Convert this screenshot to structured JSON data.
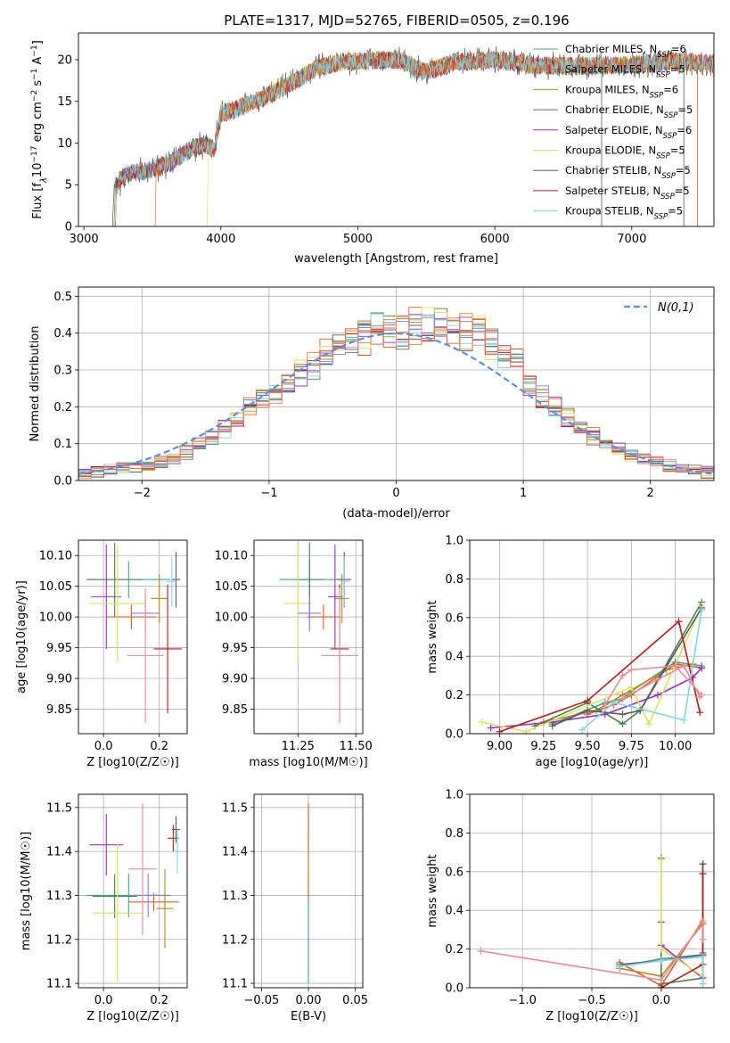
{
  "figure": {
    "title": "PLATE=1317, MJD=52765, FIBERID=0505, z=0.196"
  },
  "colors": {
    "series": [
      "#3fa0a6",
      "#e25a2d",
      "#b68a1a",
      "#4f7f4f",
      "#9b30c2",
      "#dce25c",
      "#5a5a5a",
      "#b01e1e",
      "#7fd6e8"
    ],
    "normal": "#5b8fd9",
    "grid": "#b0b0b0",
    "extra_hist": [
      "#8080e0",
      "#e88aa0",
      "#f07a3a"
    ]
  },
  "chart_data": [
    {
      "id": "spectrum",
      "type": "line",
      "title": "PLATE=1317, MJD=52765, FIBERID=0505, z=0.196",
      "xlabel": "wavelength [Angstrom, rest frame]",
      "ylabel": "Flux [f_λ 10^-17 erg cm^-2 s^-1 A^-1]",
      "xlim": [
        2960,
        7600
      ],
      "ylim": [
        0,
        23.2
      ],
      "xticks": [
        3000,
        4000,
        5000,
        6000,
        7000
      ],
      "yticks": [
        0,
        5,
        10,
        15,
        20
      ],
      "grid": false,
      "legend_position": "top-right",
      "legend": [
        {
          "base": "Chabrier MILES, N",
          "sub": "SSP",
          "tail": "=6"
        },
        {
          "base": "Salpeter MILES, N",
          "sub": "SSP",
          "tail": "=5"
        },
        {
          "base": "Kroupa MILES, N",
          "sub": "SSP",
          "tail": "=6"
        },
        {
          "base": "Chabrier ELODIE, N",
          "sub": "SSP",
          "tail": "=5"
        },
        {
          "base": "Salpeter ELODIE, N",
          "sub": "SSP",
          "tail": "=6"
        },
        {
          "base": "Kroupa ELODIE, N",
          "sub": "SSP",
          "tail": "=5"
        },
        {
          "base": "Chabrier STELIB, N",
          "sub": "SSP",
          "tail": "=5"
        },
        {
          "base": "Salpeter STELIB, N",
          "sub": "SSP",
          "tail": "=5"
        },
        {
          "base": "Kroupa STELIB, N",
          "sub": "SSP",
          "tail": "=5"
        }
      ],
      "continuum": [
        [
          3210,
          4.3
        ],
        [
          3300,
          6.3
        ],
        [
          3500,
          6.8
        ],
        [
          3650,
          7.8
        ],
        [
          3800,
          9.5
        ],
        [
          3900,
          9.7
        ],
        [
          3950,
          9.2
        ],
        [
          4000,
          13.5
        ],
        [
          4100,
          14.0
        ],
        [
          4300,
          15.3
        ],
        [
          4500,
          17.0
        ],
        [
          4700,
          19.0
        ],
        [
          4900,
          19.8
        ],
        [
          5100,
          19.9
        ],
        [
          5300,
          20.0
        ],
        [
          5500,
          18.5
        ],
        [
          5700,
          19.7
        ],
        [
          6000,
          20.0
        ],
        [
          6300,
          19.3
        ],
        [
          6600,
          19.2
        ],
        [
          7000,
          19.4
        ],
        [
          7300,
          19.8
        ],
        [
          7600,
          19.5
        ]
      ],
      "series_start": [
        3220,
        3520,
        3220,
        3230,
        3230,
        3900,
        3210,
        3230,
        3230
      ]
    },
    {
      "id": "residuals",
      "type": "histogram",
      "xlabel": "(data-model)/error",
      "ylabel": "Normed distribution",
      "xlim": [
        -2.5,
        2.5
      ],
      "ylim": [
        0,
        0.525
      ],
      "xticks": [
        -2,
        -1,
        0,
        1,
        2
      ],
      "yticks": [
        0.0,
        0.1,
        0.2,
        0.3,
        0.4,
        0.5
      ],
      "grid": true,
      "bin_width": 0.1,
      "legend_position": "top-right",
      "legend": {
        "label": "N(0,1)",
        "style": "dashed"
      },
      "mean_profile": [
        0.017,
        0.023,
        0.028,
        0.035,
        0.04,
        0.042,
        0.05,
        0.06,
        0.075,
        0.095,
        0.115,
        0.14,
        0.165,
        0.195,
        0.22,
        0.235,
        0.26,
        0.29,
        0.32,
        0.345,
        0.37,
        0.385,
        0.395,
        0.405,
        0.41,
        0.405,
        0.415,
        0.42,
        0.43,
        0.415,
        0.405,
        0.4,
        0.375,
        0.35,
        0.315,
        0.27,
        0.23,
        0.2,
        0.17,
        0.14,
        0.12,
        0.1,
        0.085,
        0.07,
        0.06,
        0.05,
        0.04,
        0.035,
        0.028,
        0.022
      ]
    },
    {
      "id": "age-vs-Z",
      "type": "scatter",
      "xlabel": "Z [log10(Z/Z☉)]",
      "ylabel": "age [log10(age/yr)]",
      "xlim": [
        -0.09,
        0.3
      ],
      "ylim": [
        9.81,
        10.125
      ],
      "xticks": [
        0.0,
        0.2
      ],
      "yticks": [
        9.85,
        9.9,
        9.95,
        10.0,
        10.05,
        10.1
      ],
      "grid": true,
      "points": [
        {
          "x": 0.09,
          "y": 10.061,
          "xerr": 0.15,
          "yerr": 0.03
        },
        {
          "x": 0.1,
          "y": 10.0,
          "xerr": 0.09,
          "yerr": 0.02
        },
        {
          "x": 0.2,
          "y": 10.03,
          "xerr": 0.03,
          "yerr": 0.04
        },
        {
          "x": 0.04,
          "y": 10.061,
          "xerr": 0.1,
          "yerr": 0.06
        },
        {
          "x": 0.01,
          "y": 10.033,
          "xerr": 0.055,
          "yerr": 0.085
        },
        {
          "x": 0.05,
          "y": 10.022,
          "xerr": 0.1,
          "yerr": 0.095
        },
        {
          "x": 0.26,
          "y": 10.061,
          "xerr": 0.015,
          "yerr": 0.045
        },
        {
          "x": 0.23,
          "y": 9.948,
          "xerr": 0.05,
          "yerr": 0.105
        },
        {
          "x": 0.245,
          "y": 10.058,
          "xerr": 0.02,
          "yerr": 0.04
        },
        {
          "x": 0.15,
          "y": 10.006,
          "xerr": 0.05,
          "yerr": 0.03
        },
        {
          "x": 0.15,
          "y": 9.937,
          "xerr": 0.065,
          "yerr": 0.11
        }
      ]
    },
    {
      "id": "age-vs-mass",
      "type": "scatter",
      "xlabel": "mass [log10(M/M☉)]",
      "ylabel": "",
      "xlim": [
        11.06,
        11.53
      ],
      "ylim": [
        9.81,
        10.125
      ],
      "xticks": [
        11.25,
        11.5
      ],
      "yticks": [
        9.85,
        9.9,
        9.95,
        10.0,
        10.05,
        10.1
      ],
      "grid": true,
      "points": [
        {
          "x": 11.3,
          "y": 10.061,
          "xerr": 0.13,
          "yerr": 0.03
        },
        {
          "x": 11.36,
          "y": 10.0,
          "xerr": 0.07,
          "yerr": 0.02
        },
        {
          "x": 11.44,
          "y": 10.03,
          "xerr": 0.03,
          "yerr": 0.04
        },
        {
          "x": 11.3,
          "y": 10.061,
          "xerr": 0.06,
          "yerr": 0.06
        },
        {
          "x": 11.41,
          "y": 10.033,
          "xerr": 0.03,
          "yerr": 0.085
        },
        {
          "x": 11.25,
          "y": 10.022,
          "xerr": 0.06,
          "yerr": 0.095
        },
        {
          "x": 11.45,
          "y": 10.061,
          "xerr": 0.03,
          "yerr": 0.045
        },
        {
          "x": 11.43,
          "y": 9.948,
          "xerr": 0.04,
          "yerr": 0.105
        },
        {
          "x": 11.45,
          "y": 10.058,
          "xerr": 0.02,
          "yerr": 0.04
        },
        {
          "x": 11.3,
          "y": 10.006,
          "xerr": 0.05,
          "yerr": 0.03
        },
        {
          "x": 11.43,
          "y": 9.937,
          "xerr": 0.08,
          "yerr": 0.11
        }
      ]
    },
    {
      "id": "weight-vs-age",
      "type": "line",
      "xlabel": "age [log10(age/yr)]",
      "ylabel": "mass weight",
      "xlim": [
        8.83,
        10.22
      ],
      "ylim": [
        0.0,
        1.0
      ],
      "xticks": [
        9.0,
        9.25,
        9.5,
        9.75,
        10.0
      ],
      "yticks": [
        0.0,
        0.2,
        0.4,
        0.6,
        0.8,
        1.0
      ],
      "grid": true,
      "series": [
        {
          "x": [
            9.3,
            9.6,
            9.7,
            9.75,
            10.0,
            10.15
          ],
          "y": [
            0.05,
            0.16,
            0.18,
            0.22,
            0.37,
            0.35
          ]
        },
        {
          "x": [
            9.5,
            9.65,
            9.75,
            10.0,
            10.15
          ],
          "y": [
            0.1,
            0.15,
            0.2,
            0.36,
            0.34
          ]
        },
        {
          "x": [
            9.25,
            9.55,
            9.7,
            9.95,
            10.1
          ],
          "y": [
            0.06,
            0.12,
            0.2,
            0.33,
            0.36
          ]
        },
        {
          "x": [
            9.2,
            9.5,
            9.7,
            9.8,
            10.15
          ],
          "y": [
            0.04,
            0.16,
            0.05,
            0.12,
            0.68
          ]
        },
        {
          "x": [
            8.95,
            9.3,
            9.6,
            9.9,
            10.1,
            10.15
          ],
          "y": [
            0.03,
            0.06,
            0.1,
            0.2,
            0.29,
            0.34
          ]
        },
        {
          "x": [
            8.9,
            9.15,
            9.75,
            9.85,
            10.15
          ],
          "y": [
            0.06,
            0.01,
            0.24,
            0.05,
            0.66
          ]
        },
        {
          "x": [
            9.3,
            9.5,
            9.7,
            9.8,
            10.15
          ],
          "y": [
            0.04,
            0.12,
            0.1,
            0.12,
            0.65
          ]
        },
        {
          "x": [
            9.0,
            9.5,
            10.02,
            10.14
          ],
          "y": [
            0.01,
            0.17,
            0.58,
            0.11
          ]
        },
        {
          "x": [
            9.47,
            9.65,
            9.75,
            10.05,
            10.15
          ],
          "y": [
            0.02,
            0.16,
            0.14,
            0.07,
            0.64
          ]
        },
        {
          "x": [
            9.6,
            9.7,
            9.75,
            10.0,
            10.15
          ],
          "y": [
            0.15,
            0.3,
            0.33,
            0.35,
            0.2
          ]
        },
        {
          "x": [
            9.7,
            9.9,
            10.05,
            10.14
          ],
          "y": [
            0.18,
            0.28,
            0.35,
            0.19
          ]
        }
      ]
    },
    {
      "id": "mass-vs-Z",
      "type": "scatter",
      "xlabel": "Z [log10(Z/Z☉)]",
      "ylabel": "mass [log10(M/M☉)]",
      "xlim": [
        -0.09,
        0.3
      ],
      "ylim": [
        11.09,
        11.53
      ],
      "xticks": [
        0.0,
        0.2
      ],
      "yticks": [
        11.1,
        11.2,
        11.3,
        11.4,
        11.5
      ],
      "grid": true,
      "points": [
        {
          "x": 0.09,
          "y": 11.3,
          "xerr": 0.15,
          "yerr": 0.05
        },
        {
          "x": 0.18,
          "y": 11.285,
          "xerr": 0.09,
          "yerr": 0.02
        },
        {
          "x": 0.22,
          "y": 11.27,
          "xerr": 0.03,
          "yerr": 0.09
        },
        {
          "x": 0.04,
          "y": 11.298,
          "xerr": 0.08,
          "yerr": 0.05
        },
        {
          "x": 0.01,
          "y": 11.415,
          "xerr": 0.06,
          "yerr": 0.07
        },
        {
          "x": 0.05,
          "y": 11.26,
          "xerr": 0.09,
          "yerr": 0.16
        },
        {
          "x": 0.26,
          "y": 11.45,
          "xerr": 0.015,
          "yerr": 0.03
        },
        {
          "x": 0.25,
          "y": 11.43,
          "xerr": 0.02,
          "yerr": 0.03
        },
        {
          "x": 0.265,
          "y": 11.4,
          "xerr": 0.01,
          "yerr": 0.05
        },
        {
          "x": 0.16,
          "y": 11.3,
          "xerr": 0.06,
          "yerr": 0.05
        },
        {
          "x": 0.14,
          "y": 11.36,
          "xerr": 0.05,
          "yerr": 0.15
        }
      ]
    },
    {
      "id": "mass-vs-ebv",
      "type": "scatter",
      "xlabel": "E(B-V)",
      "ylabel": "",
      "xlim": [
        -0.058,
        0.058
      ],
      "ylim": [
        11.09,
        11.53
      ],
      "xticks": [
        -0.05,
        0.0,
        0.05
      ],
      "yticks": [
        11.1,
        11.2,
        11.3,
        11.4,
        11.5
      ],
      "grid": true,
      "points": [
        {
          "x": 0.0,
          "y": 11.3,
          "xerr": 0.0,
          "yerr": 0.2
        },
        {
          "x": 0.0,
          "y": 11.4,
          "xerr": 0.0,
          "yerr": 0.11
        },
        {
          "x": 0.0,
          "y": 11.36,
          "xerr": 0.0,
          "yerr": 0.03
        }
      ]
    },
    {
      "id": "weight-vs-Z",
      "type": "line",
      "xlabel": "Z [log10(Z/Z☉)]",
      "ylabel": "mass weight",
      "xlim": [
        -1.38,
        0.38
      ],
      "ylim": [
        0.0,
        1.0
      ],
      "xticks": [
        -1.0,
        -0.5,
        0.0
      ],
      "yticks": [
        0.0,
        0.2,
        0.4,
        0.6,
        0.8,
        1.0
      ],
      "grid": true,
      "series": [
        {
          "x": [
            -0.3,
            0.0,
            0.3
          ],
          "y": [
            0.11,
            0.15,
            0.17
          ]
        },
        {
          "x": [
            -0.3,
            0.0,
            0.3
          ],
          "y": [
            0.13,
            0.01,
            0.35
          ]
        },
        {
          "x": [
            -0.3,
            0.0,
            0.3
          ],
          "y": [
            0.1,
            0.06,
            0.33
          ]
        },
        {
          "x": [
            0.0,
            0.0,
            0.3,
            0.3
          ],
          "y": [
            0.67,
            0.02,
            0.05,
            0.64
          ]
        },
        {
          "x": [
            0.0,
            0.0,
            0.3,
            0.3
          ],
          "y": [
            0.34,
            0.22,
            0.05,
            0.18
          ]
        },
        {
          "x": [
            0.0,
            0.0,
            0.3,
            0.3
          ],
          "y": [
            0.66,
            0.2,
            0.06,
            0.35
          ]
        },
        {
          "x": [
            -0.3,
            0.0,
            0.3,
            0.3
          ],
          "y": [
            0.12,
            0.14,
            0.17,
            0.64
          ]
        },
        {
          "x": [
            0.0,
            0.3,
            0.3
          ],
          "y": [
            0.0,
            0.12,
            0.59
          ]
        },
        {
          "x": [
            -0.3,
            0.0,
            0.3,
            0.3
          ],
          "y": [
            0.11,
            0.14,
            0.16,
            0.02
          ]
        },
        {
          "x": [
            -1.3,
            0.0,
            0.3,
            0.3
          ],
          "y": [
            0.19,
            0.04,
            0.34,
            0.25
          ]
        }
      ]
    }
  ]
}
